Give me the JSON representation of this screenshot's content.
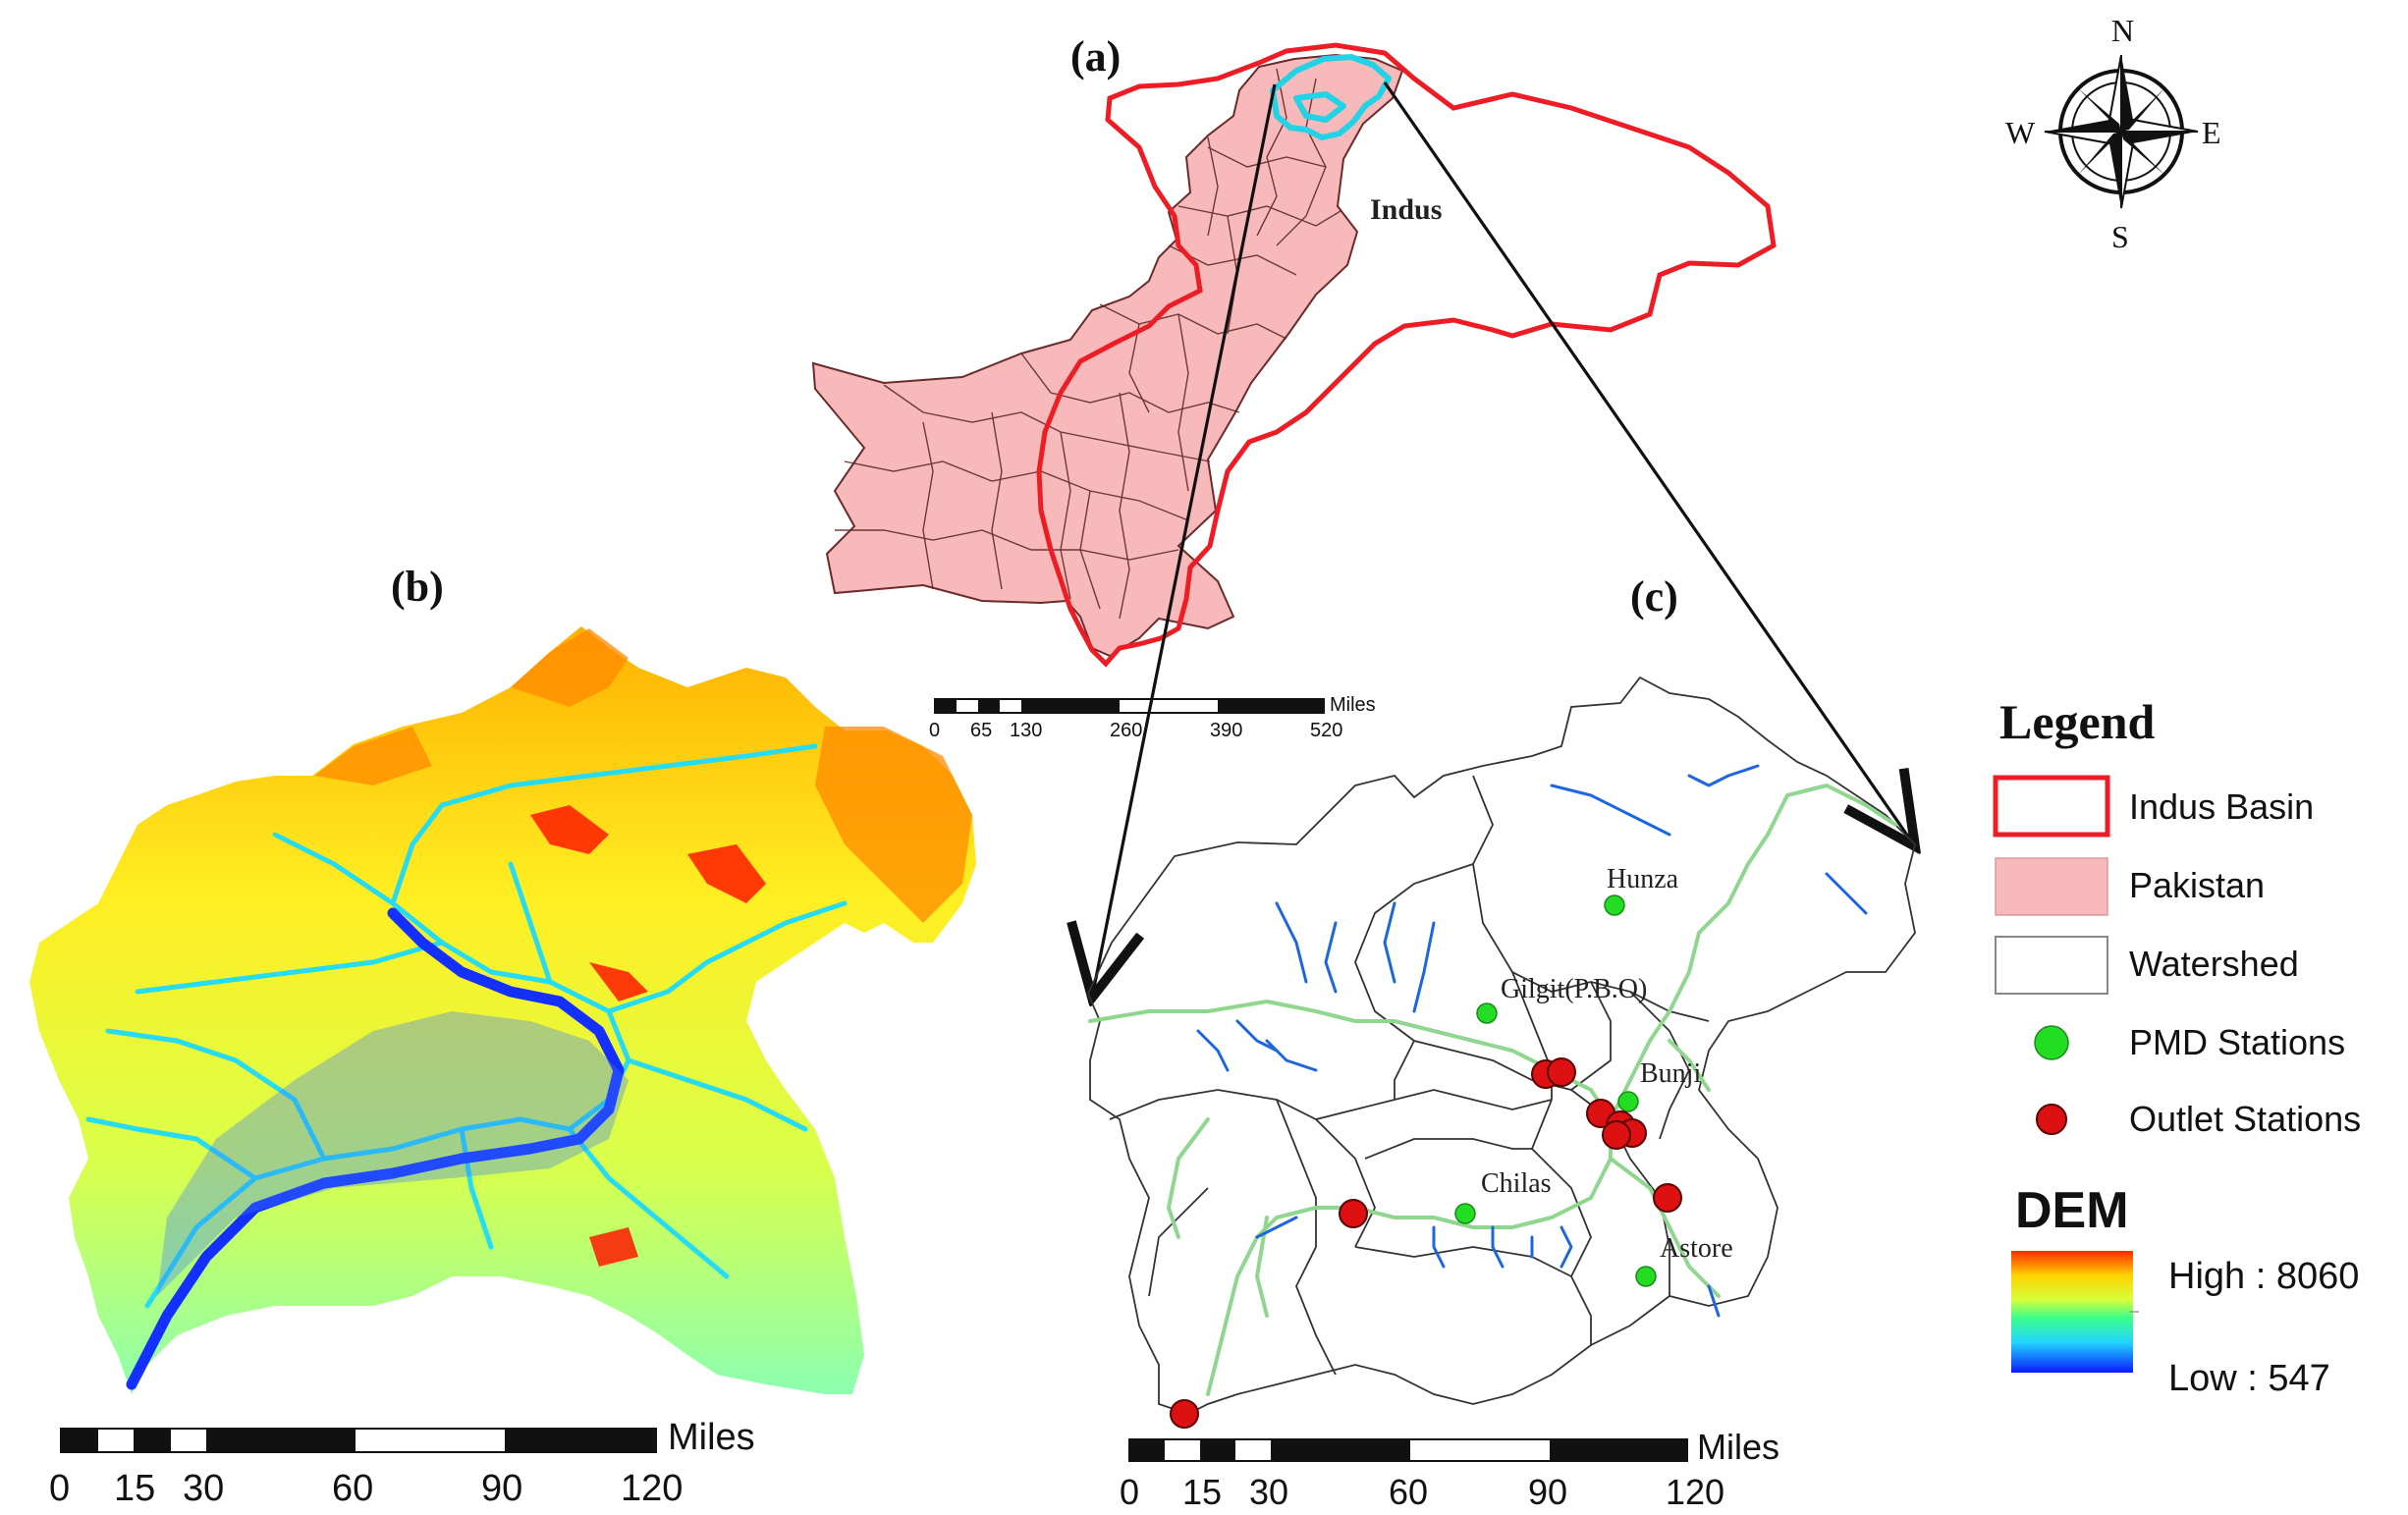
{
  "panels": {
    "a": {
      "label": "(a)",
      "basin_name": "Indus"
    },
    "b": {
      "label": "(b)"
    },
    "c": {
      "label": "(c)"
    }
  },
  "scalebars": {
    "a": {
      "unit": "Miles",
      "ticks": [
        "0",
        "65",
        "130",
        "260",
        "390",
        "520"
      ]
    },
    "b": {
      "unit": "Miles",
      "ticks": [
        "0",
        "15",
        "30",
        "60",
        "90",
        "120"
      ]
    },
    "c": {
      "unit": "Miles",
      "ticks": [
        "0",
        "15",
        "30",
        "60",
        "90",
        "120"
      ]
    }
  },
  "compass": {
    "north": "N",
    "south": "S",
    "east": "E",
    "west": "W"
  },
  "stations": {
    "pmd": [
      {
        "name": "Hunza"
      },
      {
        "name": "Gilgit(P.B.O)"
      },
      {
        "name": "Bunji"
      },
      {
        "name": "Chilas"
      },
      {
        "name": "Astore"
      }
    ]
  },
  "legend": {
    "title": "Legend",
    "items": [
      {
        "label": "Indus Basin",
        "symbol": "outline-red"
      },
      {
        "label": "Pakistan",
        "symbol": "fill-pink"
      },
      {
        "label": "Watershed",
        "symbol": "outline-gray"
      },
      {
        "label": "PMD Stations",
        "symbol": "dot-green"
      },
      {
        "label": "Outlet Stations",
        "symbol": "dot-red"
      }
    ],
    "dem": {
      "title": "DEM",
      "high": "High : 8060",
      "low": "Low : 547"
    }
  },
  "colors": {
    "indus_basin": "#ee1c25",
    "pakistan_fill": "#f7b9b9",
    "watershed_outline": "#333333",
    "study_area_outline": "#22d3e6",
    "pmd_station": "#22dd22",
    "outlet_station": "#dd1111",
    "dem_high": "#ff2a00",
    "dem_low": "#0a1aff"
  }
}
